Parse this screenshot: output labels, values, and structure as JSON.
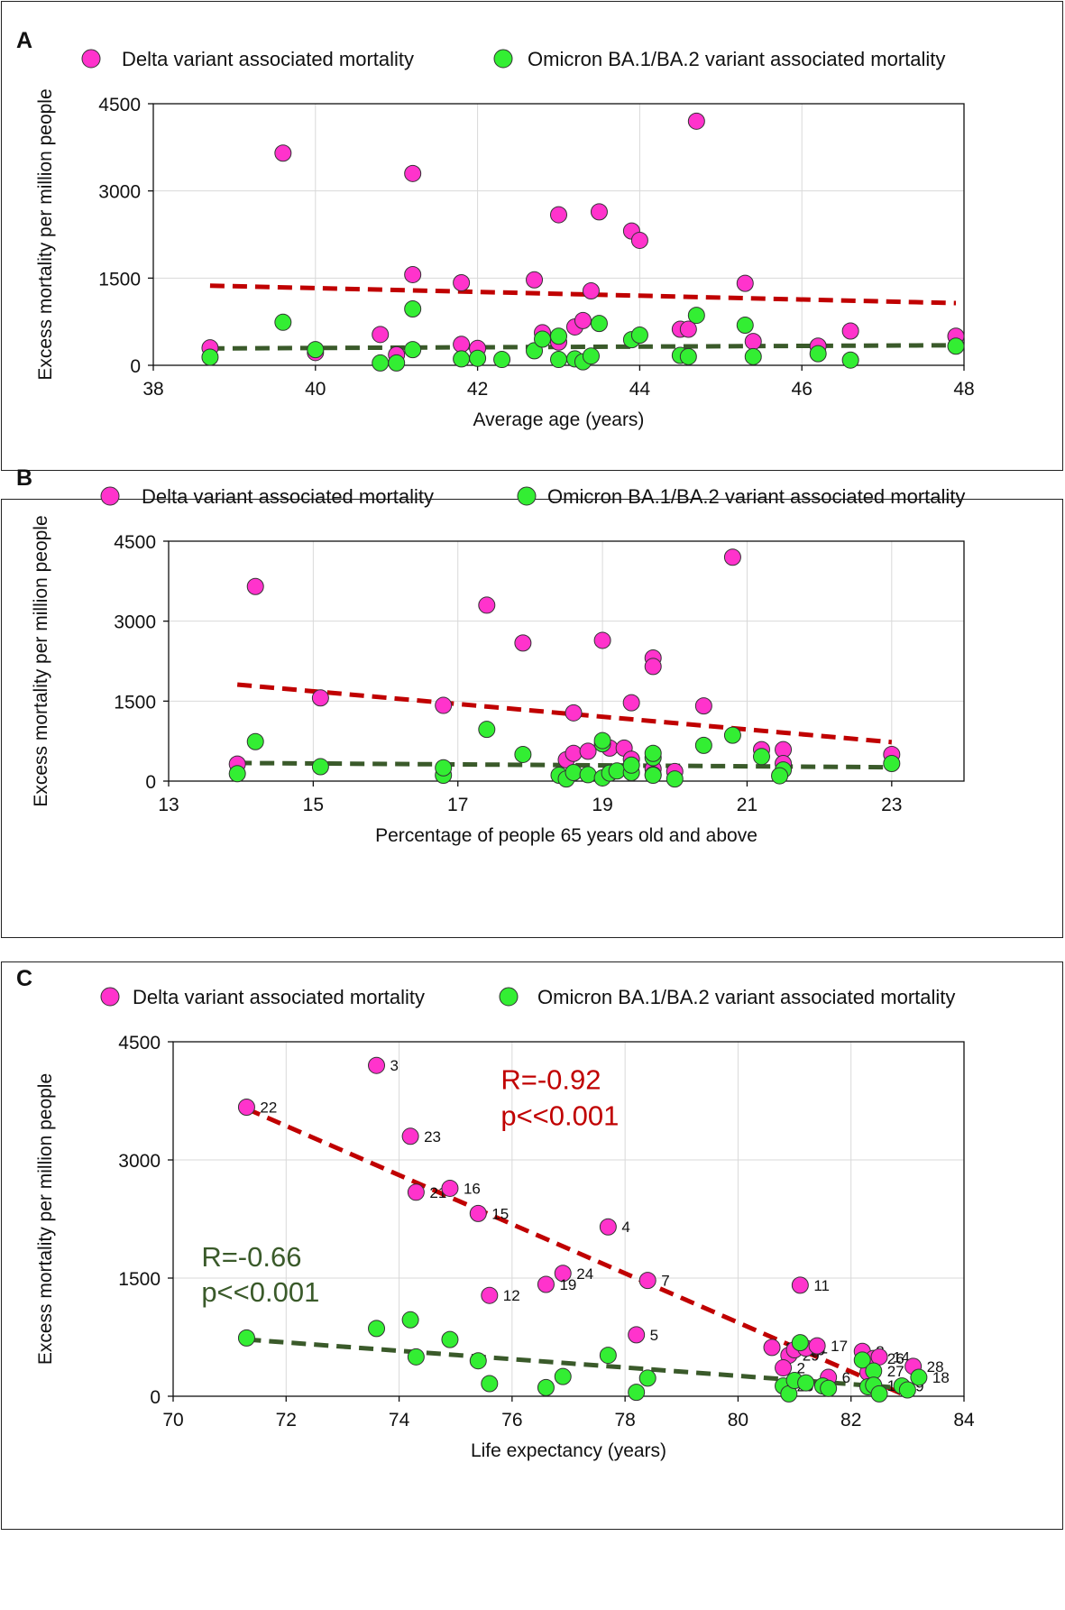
{
  "legend": {
    "delta": "Delta variant associated mortality",
    "omicron": "Omicron BA.1/BA.2 variant associated mortality"
  },
  "colors": {
    "delta_fill": "#ff33cc",
    "omicron_fill": "#33ee33",
    "delta_trend": "#c00000",
    "omicron_trend": "#3a5a2a",
    "grid": "#d9d9d9"
  },
  "chart_data": [
    {
      "panel": "A",
      "type": "scatter",
      "xlabel": "Average age (years)",
      "ylabel": "Excess mortality per million people",
      "xlim": [
        38,
        48
      ],
      "ylim": [
        0,
        4500
      ],
      "xticks": [
        38,
        40,
        42,
        44,
        46,
        48
      ],
      "yticks": [
        0,
        1500,
        3000,
        4500
      ],
      "series": [
        {
          "name": "Delta variant associated mortality",
          "points": [
            [
              38.7,
              300
            ],
            [
              39.6,
              3650
            ],
            [
              40.0,
              220
            ],
            [
              40.8,
              530
            ],
            [
              41.0,
              180
            ],
            [
              41.2,
              3300
            ],
            [
              41.2,
              1560
            ],
            [
              41.8,
              1420
            ],
            [
              41.8,
              360
            ],
            [
              42.0,
              290
            ],
            [
              42.7,
              1470
            ],
            [
              42.8,
              560
            ],
            [
              43.0,
              2590
            ],
            [
              43.0,
              400
            ],
            [
              43.2,
              660
            ],
            [
              43.3,
              770
            ],
            [
              43.4,
              1280
            ],
            [
              43.5,
              2640
            ],
            [
              43.9,
              2310
            ],
            [
              44.0,
              2150
            ],
            [
              44.5,
              620
            ],
            [
              44.6,
              620
            ],
            [
              44.7,
              4200
            ],
            [
              45.3,
              1410
            ],
            [
              45.4,
              410
            ],
            [
              46.2,
              330
            ],
            [
              46.6,
              590
            ],
            [
              47.9,
              500
            ]
          ]
        },
        {
          "name": "Omicron BA.1/BA.2 variant associated mortality",
          "points": [
            [
              38.7,
              140
            ],
            [
              39.6,
              740
            ],
            [
              40.0,
              270
            ],
            [
              40.8,
              40
            ],
            [
              41.0,
              40
            ],
            [
              41.2,
              970
            ],
            [
              41.2,
              270
            ],
            [
              41.8,
              110
            ],
            [
              42.0,
              120
            ],
            [
              42.3,
              100
            ],
            [
              42.7,
              250
            ],
            [
              42.8,
              450
            ],
            [
              43.0,
              500
            ],
            [
              43.0,
              100
            ],
            [
              43.2,
              110
            ],
            [
              43.3,
              60
            ],
            [
              43.4,
              160
            ],
            [
              43.5,
              720
            ],
            [
              43.9,
              440
            ],
            [
              44.0,
              520
            ],
            [
              44.5,
              170
            ],
            [
              44.6,
              150
            ],
            [
              44.7,
              860
            ],
            [
              45.3,
              690
            ],
            [
              45.4,
              150
            ],
            [
              46.2,
              200
            ],
            [
              46.6,
              90
            ],
            [
              47.9,
              330
            ]
          ]
        }
      ],
      "trendlines": [
        {
          "series": "Delta variant associated mortality",
          "from": [
            38.7,
            1370
          ],
          "to": [
            47.9,
            1070
          ]
        },
        {
          "series": "Omicron BA.1/BA.2 variant associated mortality",
          "from": [
            38.7,
            290
          ],
          "to": [
            47.9,
            345
          ]
        }
      ]
    },
    {
      "panel": "B",
      "type": "scatter",
      "xlabel": "Percentage of people 65 years old and above",
      "ylabel": "Excess mortality per million people",
      "xlim": [
        13,
        24
      ],
      "ylim": [
        0,
        4500
      ],
      "xticks": [
        13,
        15,
        17,
        19,
        21,
        23
      ],
      "yticks": [
        0,
        1500,
        3000,
        4500
      ],
      "series": [
        {
          "name": "Delta variant associated mortality",
          "points": [
            [
              13.95,
              320
            ],
            [
              14.2,
              3650
            ],
            [
              15.1,
              1560
            ],
            [
              16.8,
              1420
            ],
            [
              17.4,
              3300
            ],
            [
              17.9,
              2590
            ],
            [
              18.5,
              400
            ],
            [
              18.6,
              520
            ],
            [
              18.6,
              1280
            ],
            [
              18.8,
              560
            ],
            [
              19.0,
              2640
            ],
            [
              19.1,
              620
            ],
            [
              19.3,
              620
            ],
            [
              19.4,
              1470
            ],
            [
              19.4,
              410
            ],
            [
              19.7,
              2310
            ],
            [
              19.7,
              2150
            ],
            [
              19.7,
              230
            ],
            [
              20.0,
              180
            ],
            [
              20.4,
              1410
            ],
            [
              20.8,
              4200
            ],
            [
              21.2,
              590
            ],
            [
              21.5,
              590
            ],
            [
              21.5,
              330
            ],
            [
              23.0,
              500
            ]
          ]
        },
        {
          "name": "Omicron BA.1/BA.2 variant associated mortality",
          "points": [
            [
              13.95,
              140
            ],
            [
              14.2,
              740
            ],
            [
              15.1,
              270
            ],
            [
              16.8,
              110
            ],
            [
              16.8,
              250
            ],
            [
              17.4,
              970
            ],
            [
              17.9,
              500
            ],
            [
              18.4,
              110
            ],
            [
              18.5,
              40
            ],
            [
              18.6,
              160
            ],
            [
              18.8,
              120
            ],
            [
              19.0,
              60
            ],
            [
              19.0,
              700
            ],
            [
              19.0,
              760
            ],
            [
              19.1,
              150
            ],
            [
              19.2,
              190
            ],
            [
              19.4,
              160
            ],
            [
              19.4,
              300
            ],
            [
              19.7,
              440
            ],
            [
              19.7,
              520
            ],
            [
              19.7,
              120
            ],
            [
              19.7,
              110
            ],
            [
              20.0,
              40
            ],
            [
              20.4,
              670
            ],
            [
              20.8,
              860
            ],
            [
              21.2,
              460
            ],
            [
              21.5,
              210
            ],
            [
              21.45,
              100
            ],
            [
              23.0,
              330
            ]
          ]
        }
      ],
      "trendlines": [
        {
          "series": "Delta variant associated mortality",
          "from": [
            13.95,
            1810
          ],
          "to": [
            23.0,
            730
          ]
        },
        {
          "series": "Omicron BA.1/BA.2 variant associated mortality",
          "from": [
            13.95,
            340
          ],
          "to": [
            23.0,
            260
          ]
        }
      ]
    },
    {
      "panel": "C",
      "type": "scatter",
      "xlabel": "Life expectancy (years)",
      "ylabel": "Excess mortality per million people",
      "xlim": [
        70,
        84
      ],
      "ylim": [
        0,
        4500
      ],
      "xticks": [
        70,
        72,
        74,
        76,
        78,
        80,
        82,
        84
      ],
      "yticks": [
        0,
        1500,
        3000,
        4500
      ],
      "annotations": [
        {
          "series": "delta",
          "lines": [
            "R=-0.92",
            "p<<0.001"
          ]
        },
        {
          "series": "omicron",
          "lines": [
            "R=-0.66",
            "p<<0.001"
          ]
        }
      ],
      "series": [
        {
          "name": "Delta variant associated mortality",
          "points": [
            {
              "x": 71.3,
              "y": 3670,
              "label": "22"
            },
            {
              "x": 73.6,
              "y": 4200,
              "label": "3"
            },
            {
              "x": 74.2,
              "y": 3300,
              "label": "23"
            },
            {
              "x": 74.3,
              "y": 2590,
              "label": "21"
            },
            {
              "x": 74.9,
              "y": 2640,
              "label": "16"
            },
            {
              "x": 75.4,
              "y": 2320,
              "label": "15"
            },
            {
              "x": 77.7,
              "y": 2150,
              "label": "4"
            },
            {
              "x": 76.9,
              "y": 1560,
              "label": "24"
            },
            {
              "x": 76.6,
              "y": 1420,
              "label": "19"
            },
            {
              "x": 78.4,
              "y": 1470,
              "label": "7"
            },
            {
              "x": 75.6,
              "y": 1280,
              "label": "12"
            },
            {
              "x": 78.2,
              "y": 780,
              "label": "5"
            },
            {
              "x": 81.1,
              "y": 1410,
              "label": "11"
            },
            {
              "x": 80.6,
              "y": 620,
              "label": "25"
            },
            {
              "x": 80.9,
              "y": 520,
              "label": "29"
            },
            {
              "x": 81.0,
              "y": 590,
              "label": "10"
            },
            {
              "x": 81.2,
              "y": 610,
              "label": "1"
            },
            {
              "x": 81.4,
              "y": 640,
              "label": "17"
            },
            {
              "x": 80.8,
              "y": 360,
              "label": "2"
            },
            {
              "x": 81.6,
              "y": 240,
              "label": "6"
            },
            {
              "x": 82.2,
              "y": 570,
              "label": "8"
            },
            {
              "x": 82.4,
              "y": 480,
              "label": "26"
            },
            {
              "x": 82.5,
              "y": 500,
              "label": "14"
            },
            {
              "x": 82.3,
              "y": 300,
              "label": ""
            },
            {
              "x": 83.1,
              "y": 380,
              "label": "28"
            }
          ]
        },
        {
          "name": "Omicron BA.1/BA.2 variant associated mortality",
          "points": [
            {
              "x": 71.3,
              "y": 740,
              "label": ""
            },
            {
              "x": 73.6,
              "y": 860,
              "label": ""
            },
            {
              "x": 74.2,
              "y": 970,
              "label": ""
            },
            {
              "x": 74.3,
              "y": 500,
              "label": ""
            },
            {
              "x": 74.9,
              "y": 720,
              "label": ""
            },
            {
              "x": 75.4,
              "y": 450,
              "label": ""
            },
            {
              "x": 75.6,
              "y": 160,
              "label": ""
            },
            {
              "x": 76.6,
              "y": 110,
              "label": ""
            },
            {
              "x": 76.9,
              "y": 250,
              "label": ""
            },
            {
              "x": 77.7,
              "y": 520,
              "label": ""
            },
            {
              "x": 78.2,
              "y": 50,
              "label": ""
            },
            {
              "x": 78.4,
              "y": 230,
              "label": ""
            },
            {
              "x": 80.8,
              "y": 130,
              "label": "20"
            },
            {
              "x": 80.9,
              "y": 30,
              "label": ""
            },
            {
              "x": 81.0,
              "y": 200,
              "label": ""
            },
            {
              "x": 81.1,
              "y": 680,
              "label": ""
            },
            {
              "x": 81.2,
              "y": 170,
              "label": ""
            },
            {
              "x": 81.5,
              "y": 130,
              "label": ""
            },
            {
              "x": 81.6,
              "y": 100,
              "label": ""
            },
            {
              "x": 82.2,
              "y": 460,
              "label": ""
            },
            {
              "x": 82.3,
              "y": 120,
              "label": ""
            },
            {
              "x": 82.4,
              "y": 320,
              "label": "27"
            },
            {
              "x": 82.4,
              "y": 140,
              "label": "13"
            },
            {
              "x": 82.5,
              "y": 30,
              "label": ""
            },
            {
              "x": 82.9,
              "y": 130,
              "label": "9"
            },
            {
              "x": 83.0,
              "y": 80,
              "label": ""
            },
            {
              "x": 83.2,
              "y": 240,
              "label": "18"
            }
          ]
        }
      ],
      "trendlines": [
        {
          "series": "Delta variant associated mortality",
          "from": [
            71.3,
            3650
          ],
          "to": [
            83.0,
            0
          ]
        },
        {
          "series": "Omicron BA.1/BA.2 variant associated mortality",
          "from": [
            71.3,
            720
          ],
          "to": [
            83.0,
            100
          ]
        }
      ]
    }
  ]
}
